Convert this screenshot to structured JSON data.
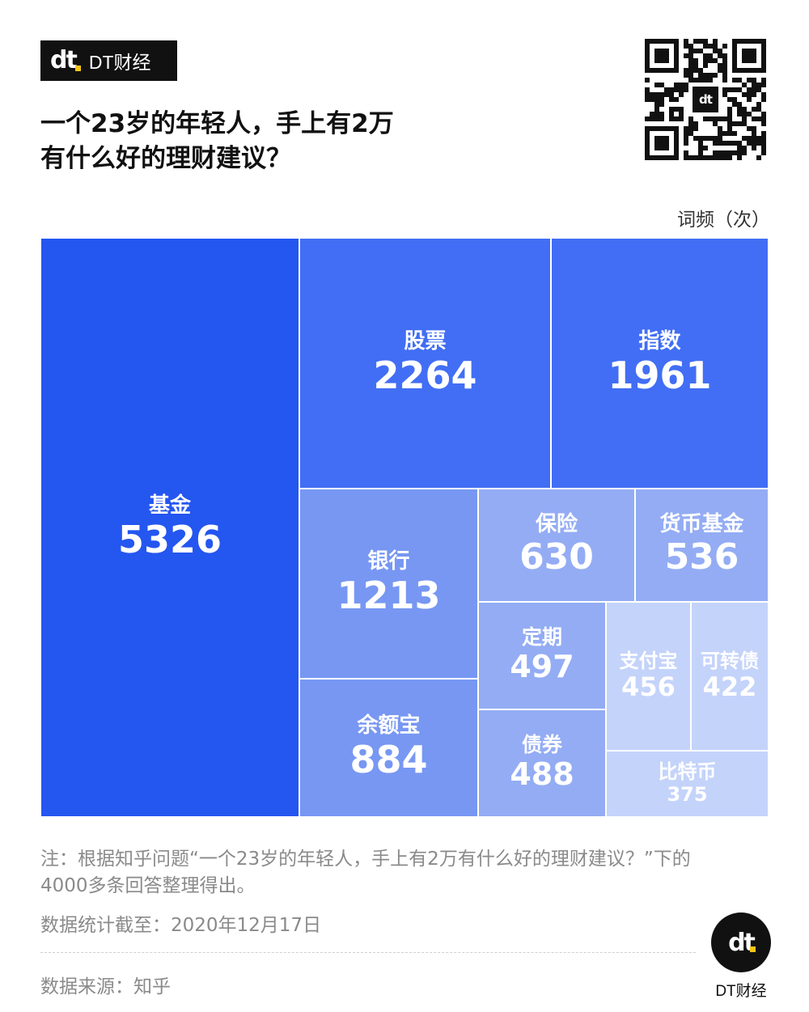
{
  "brand": {
    "logo": "dt",
    "name": "DT财经"
  },
  "title_lines": [
    "一个23岁的年轻人，手上有2万",
    "有什么好的理财建议？"
  ],
  "qr": {
    "center_logo": "dt"
  },
  "unit": "词频（次）",
  "chart_data": {
    "type": "treemap",
    "title": "一个23岁的年轻人，手上有2万有什么好的理财建议？",
    "value_label": "词频（次）",
    "items": [
      {
        "name": "基金",
        "value": 5326,
        "color": "#2456f0"
      },
      {
        "name": "股票",
        "value": 2264,
        "color": "#416ef4"
      },
      {
        "name": "指数",
        "value": 1961,
        "color": "#416ef4"
      },
      {
        "name": "银行",
        "value": 1213,
        "color": "#7797f2"
      },
      {
        "name": "余额宝",
        "value": 884,
        "color": "#7797f2"
      },
      {
        "name": "保险",
        "value": 630,
        "color": "#93acf4"
      },
      {
        "name": "货币基金",
        "value": 536,
        "color": "#93acf4"
      },
      {
        "name": "定期",
        "value": 497,
        "color": "#93acf4"
      },
      {
        "name": "债券",
        "value": 488,
        "color": "#93acf4"
      },
      {
        "name": "支付宝",
        "value": 456,
        "color": "#c4d3fa"
      },
      {
        "name": "可转债",
        "value": 422,
        "color": "#c4d3fa"
      },
      {
        "name": "比特币",
        "value": 375,
        "color": "#c4d3fa"
      }
    ]
  },
  "note": "注：根据知乎问题“一个23岁的年轻人，手上有2万有什么好的理财建议？”下的4000多条回答整理得出。",
  "date": "数据统计截至：2020年12月17日",
  "source": "数据来源：知乎",
  "footer_brand": {
    "logo": "dt",
    "name": "DT财经"
  }
}
